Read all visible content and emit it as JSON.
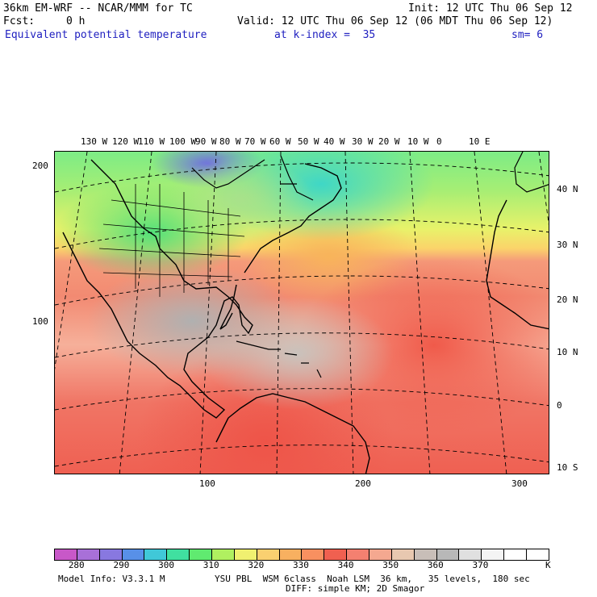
{
  "header": {
    "model_title": "36km EM-WRF -- NCAR/MMM for TC",
    "init": "Init: 12 UTC Thu 06 Sep 12",
    "fcst_label": "Fcst:",
    "fcst_value": "0 h",
    "valid": "Valid: 12 UTC Thu 06 Sep 12 (06 MDT Thu 06 Sep 12)",
    "field": "Equivalent potential temperature",
    "kindex": "at k-index =  35",
    "smoothing": "sm= 6"
  },
  "map": {
    "lon_labels": [
      "130 W",
      "120 W",
      "110 W",
      "100 W",
      "90 W",
      "80 W",
      "70 W",
      "60 W",
      "50 W",
      "40 W",
      "30 W",
      "20 W",
      "10 W",
      "0",
      "10 E"
    ],
    "lat_labels": [
      "40 N",
      "30 N",
      "20 N",
      "10 N",
      "0",
      "10 S"
    ],
    "grid_y_labels": [
      "200",
      "100"
    ],
    "grid_x_labels": [
      "100",
      "200",
      "300"
    ]
  },
  "colorbar": {
    "colors": [
      "#c858c8",
      "#a870d8",
      "#8878e0",
      "#5890e8",
      "#40c8d8",
      "#40e0a0",
      "#60ea70",
      "#b0f060",
      "#f0f070",
      "#fad070",
      "#f8b060",
      "#f89060",
      "#f06050",
      "#f48070",
      "#f4a890",
      "#e8c8b0",
      "#c8beb8",
      "#b8b8b8",
      "#e0e0e0",
      "#f4f4f4",
      "#ffffff",
      "#ffffff"
    ],
    "labels": [
      "280",
      "290",
      "300",
      "310",
      "320",
      "330",
      "340",
      "350",
      "360",
      "370"
    ],
    "unit": "K"
  },
  "footer": {
    "model_info": "Model Info: V3.3.1 M",
    "physics": "YSU PBL  WSM 6class  Noah LSM  36 km,   35 levels,  180 sec",
    "diffusion": "DIFF: simple KM; 2D Smagor"
  }
}
